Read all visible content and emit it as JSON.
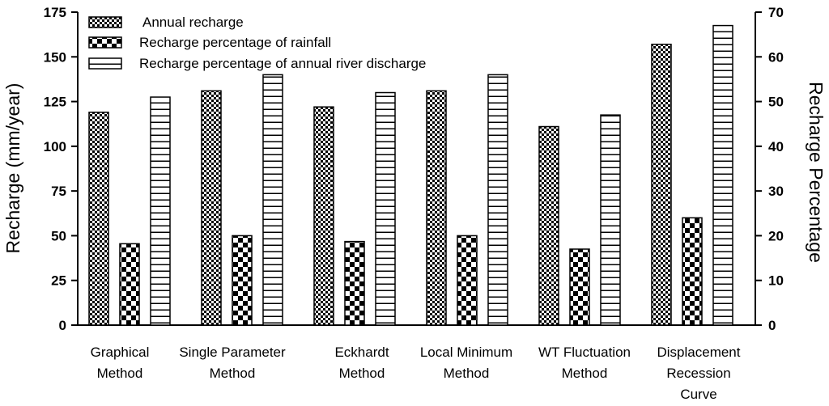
{
  "chart_data": {
    "type": "bar",
    "categories": [
      [
        "Graphical",
        "Method"
      ],
      [
        "Single Parameter",
        "Method"
      ],
      [
        "Eckhardt",
        "Method"
      ],
      [
        "Local Minimum",
        "Method"
      ],
      [
        "WT Fluctuation",
        "Method"
      ],
      [
        "Displacement",
        "Recession",
        "Curve"
      ]
    ],
    "series": [
      {
        "name": "Annual recharge",
        "axis": "left",
        "pattern": "checker-fine",
        "values": [
          119,
          131,
          122,
          131,
          111,
          157
        ]
      },
      {
        "name": "Recharge percentage of rainfall",
        "axis": "right",
        "pattern": "checker-coarse",
        "values": [
          18.2,
          20,
          18.7,
          20,
          17,
          24
        ]
      },
      {
        "name": "Recharge percentage of annual river discharge",
        "axis": "right",
        "pattern": "horizontal-lines",
        "values": [
          51,
          56,
          52,
          56,
          47,
          67
        ]
      }
    ],
    "ylabel": "Recharge (mm/year)",
    "y2label": "Recharge Percentage",
    "ylim": [
      0,
      175
    ],
    "y2lim": [
      0,
      70
    ],
    "yticks": [
      "0",
      "25",
      "50",
      "75",
      "100",
      "125",
      "150",
      "175"
    ],
    "y2ticks": [
      "0",
      "10",
      "20",
      "30",
      "40",
      "50",
      "60",
      "70"
    ],
    "legend_position": "top-left",
    "grid": false,
    "colors": {
      "ink": "#000000",
      "background": "#ffffff"
    }
  }
}
